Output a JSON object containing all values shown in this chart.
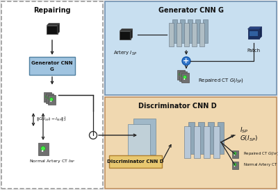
{
  "bg_color": "#eeeeee",
  "left_panel_fc": "#ffffff",
  "left_panel_ec": "#999999",
  "gen_panel_fc": "#c8dff0",
  "gen_panel_ec": "#7090b0",
  "disc_panel_fc": "#f0d8b0",
  "disc_panel_ec": "#c09060",
  "gen_cnn_box_fc": "#a0c4e0",
  "gen_cnn_box_ec": "#5080a0",
  "disc_box_fc": "#e8c870",
  "disc_box_ec": "#b08030",
  "repair_title": "Repairing",
  "gen_title": "Generator CNN G",
  "disc_title": "Discriminator CNN D",
  "artery_label": "Artery $I_{SP}$",
  "patch_label": "Patch",
  "repaired_label": "Repaired CT $G(I_{SP})$",
  "normal_artery_label": "Normal Artery CT $I_{NP}$",
  "disc_box_label": "Discriminator CNN D",
  "loss_label": "$\\|G(I_{SP}) - I_{NP}\\|_2^2$",
  "isp_label": "$I_{SP}$",
  "gisp_label": "$G(I_{SP})$",
  "repaired_ct_label": "Repaired CT $G(I_{SP})$",
  "normal_artery_ct_label": "Normal Artery CT $I_{NP}$",
  "gen_cnn_label_line1": "Generator CNN",
  "gen_cnn_label_line2": "G",
  "arrow_color": "#222222",
  "dark_cube_fc": "#111111",
  "dark_cube_top": "#333333",
  "dark_cube_right": "#222222",
  "patch_cube_fc": "#1a3060",
  "patch_cube_top": "#2a4888",
  "patch_cube_right": "#162850",
  "cnn_layer_fc": "#b0bec5",
  "cnn_layer_back": "#8fa8b8",
  "cnn_layer_ec": "#607080",
  "disc_layer_fc": "#b8c8d8",
  "disc_layer_back": "#90a8b8",
  "disc_layer_ec": "#607080",
  "big_block_fc": "#c0d0d8",
  "big_block_back": "#a0b8c8",
  "big_block_ec": "#708898",
  "ct_icon_fc": "#707070",
  "ct_icon_ec": "#505050",
  "green_dot": "#44ee44",
  "plus_fc": "#3377cc",
  "plus_ec": "#1155aa",
  "junction_fc": "#ffffff",
  "junction_ec": "#333333"
}
